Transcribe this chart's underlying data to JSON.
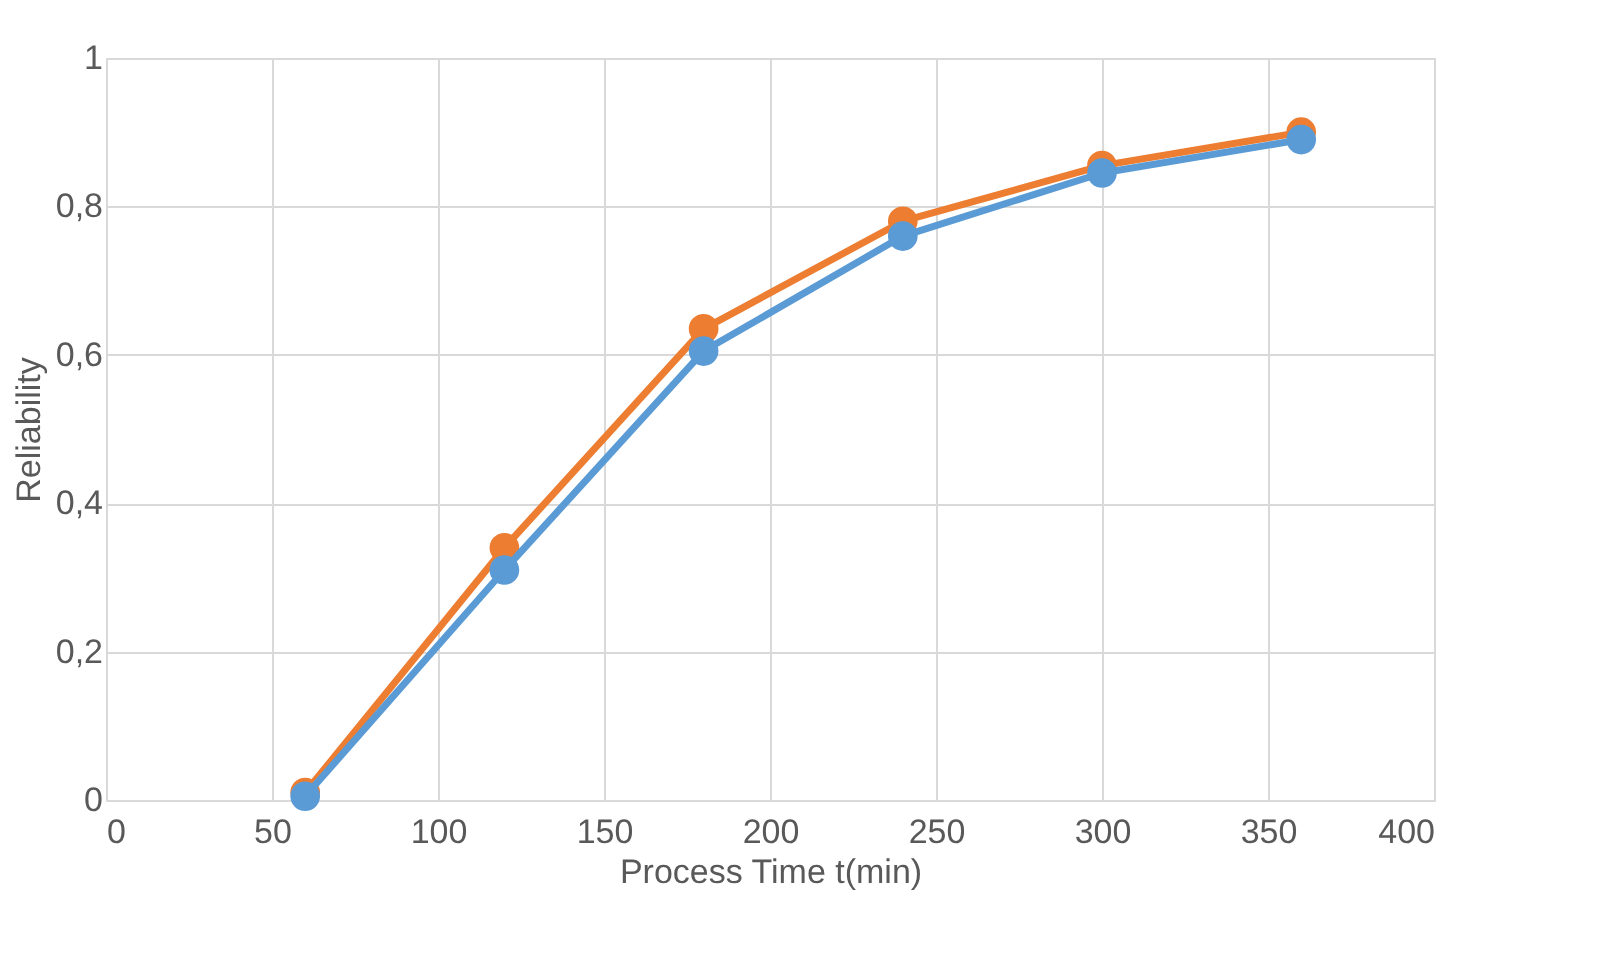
{
  "chart_data": {
    "type": "line",
    "xlabel": "Process Time t(min)",
    "ylabel": "Reliability",
    "x": [
      60,
      120,
      180,
      240,
      300,
      360
    ],
    "series": [
      {
        "color": "#ed7d31",
        "values": [
          0.01,
          0.34,
          0.635,
          0.78,
          0.855,
          0.9
        ]
      },
      {
        "color": "#5b9bd5",
        "values": [
          0.005,
          0.31,
          0.605,
          0.76,
          0.845,
          0.89
        ]
      }
    ],
    "xlim": [
      0,
      400
    ],
    "xticks": [
      0,
      50,
      100,
      150,
      200,
      250,
      300,
      350,
      400
    ],
    "ylim": [
      0,
      1
    ],
    "yticks": [
      0,
      {
        "value": 0.2,
        "label": "0,2"
      },
      {
        "value": 0.4,
        "label": "0,4"
      },
      {
        "value": 0.6,
        "label": "0,6"
      },
      {
        "value": 0.8,
        "label": "0,8"
      },
      1
    ],
    "grid": true,
    "marker": "circle",
    "line_style": "solid"
  }
}
